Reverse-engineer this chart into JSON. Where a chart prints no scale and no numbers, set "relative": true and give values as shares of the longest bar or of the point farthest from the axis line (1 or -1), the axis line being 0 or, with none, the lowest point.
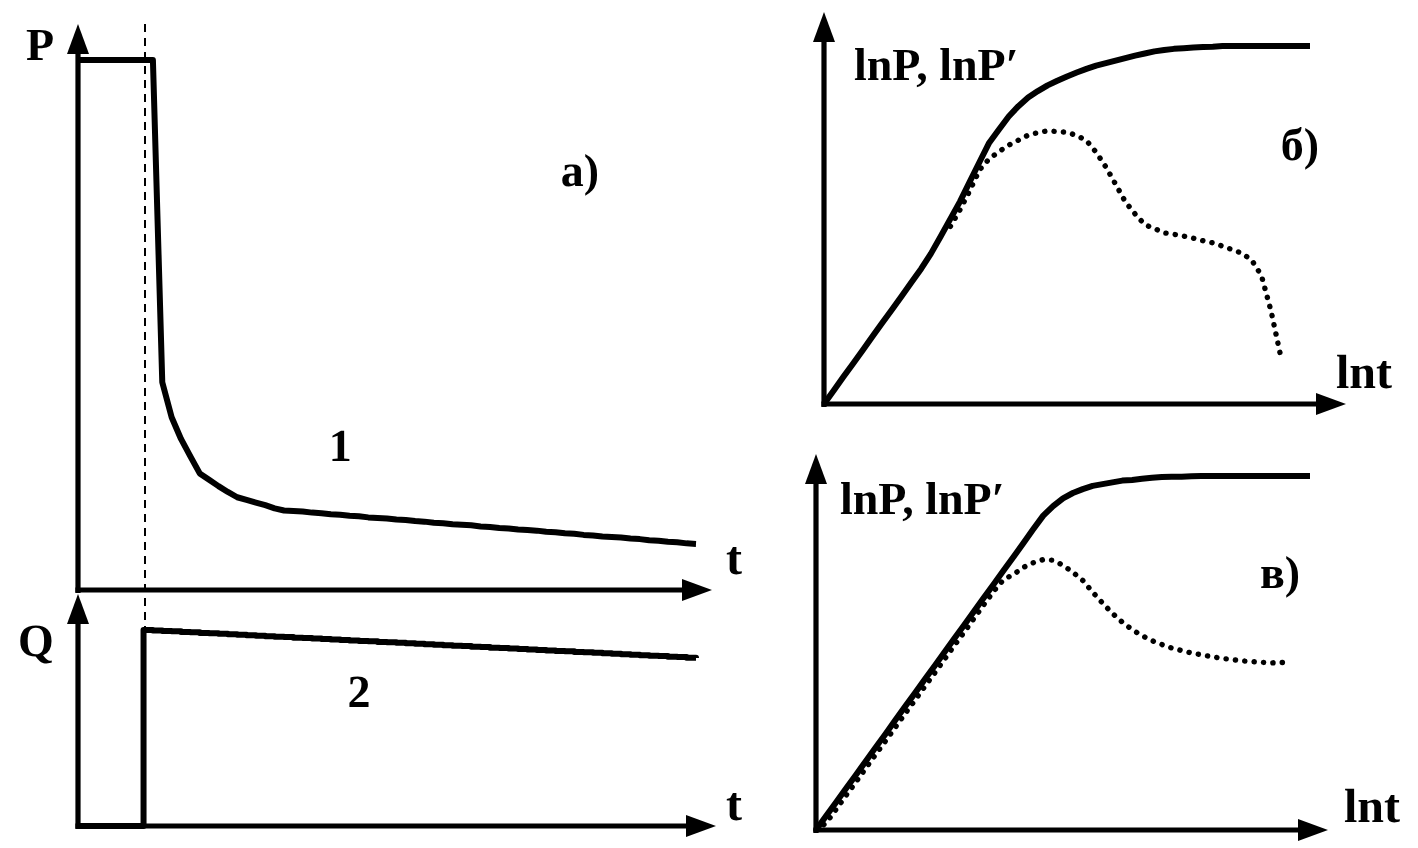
{
  "chart_data": [
    {
      "type": "line",
      "title": "a)",
      "xlabel": "t",
      "ylabel": "P",
      "relative": true,
      "categories": [
        null,
        null,
        null,
        null,
        null,
        null,
        null,
        null,
        null,
        null,
        null,
        null,
        null,
        null,
        null,
        null,
        null,
        null,
        null,
        null,
        null,
        null,
        null,
        null,
        null,
        null,
        null,
        null,
        null,
        null,
        null,
        null,
        null,
        null,
        null,
        null,
        null,
        null,
        null,
        null,
        null,
        null,
        null,
        null,
        null,
        null,
        null,
        null,
        null,
        null,
        null,
        null,
        null,
        null,
        null,
        null,
        null,
        null,
        null,
        null,
        null,
        null,
        null,
        null,
        null,
        null,
        null
      ],
      "series": [
        {
          "name": "1",
          "color": "#000000",
          "values": [
            1,
            1,
            1,
            1,
            1,
            1,
            1,
            1,
            1,
            0.392,
            0.326,
            0.285,
            0.252,
            0.22,
            0.208,
            0.196,
            0.185,
            0.175,
            0.17,
            0.165,
            0.16,
            0.154,
            0.15,
            0.149,
            0.148,
            0.146,
            0.145,
            0.143,
            0.142,
            0.14,
            0.139,
            0.137,
            0.136,
            0.135,
            0.133,
            0.132,
            0.13,
            0.129,
            0.127,
            0.126,
            0.124,
            0.123,
            0.122,
            0.12,
            0.119,
            0.117,
            0.116,
            0.114,
            0.113,
            0.112,
            0.11,
            0.109,
            0.107,
            0.106,
            0.104,
            0.103,
            0.101,
            0.1,
            0.099,
            0.097,
            0.096,
            0.094,
            0.093,
            0.091,
            0.09,
            0.088,
            0.087
          ]
        }
      ]
    },
    {
      "type": "step",
      "xlabel": "t",
      "ylabel": "Q",
      "relative": true,
      "categories": [
        null,
        null,
        null,
        null,
        null,
        null,
        null,
        null,
        null,
        null,
        null,
        null,
        null,
        null,
        null,
        null,
        null,
        null,
        null,
        null,
        null,
        null,
        null,
        null,
        null,
        null,
        null,
        null,
        null,
        null,
        null,
        null,
        null,
        null,
        null,
        null,
        null,
        null,
        null,
        null,
        null,
        null,
        null,
        null,
        null,
        null,
        null,
        null,
        null,
        null,
        null,
        null,
        null,
        null,
        null,
        null,
        null,
        null,
        null,
        null,
        null,
        null,
        null,
        null,
        null,
        null,
        null
      ],
      "series": [
        {
          "name": "2",
          "color": "#000000",
          "values": [
            0,
            0,
            0,
            0,
            0,
            0,
            0,
            1,
            0.998,
            0.995,
            0.993,
            0.99,
            0.988,
            0.985,
            0.983,
            0.981,
            0.978,
            0.976,
            0.973,
            0.971,
            0.968,
            0.966,
            0.964,
            0.961,
            0.959,
            0.956,
            0.954,
            0.952,
            0.949,
            0.947,
            0.944,
            0.942,
            0.939,
            0.937,
            0.935,
            0.932,
            0.93,
            0.927,
            0.925,
            0.922,
            0.92,
            0.918,
            0.915,
            0.913,
            0.91,
            0.908,
            0.905,
            0.903,
            0.901,
            0.898,
            0.896,
            0.893,
            0.891,
            0.888,
            0.886,
            0.884,
            0.881,
            0.879,
            0.876,
            0.874,
            0.871,
            0.869,
            0.867,
            0.864,
            0.862,
            0.859,
            0.857
          ]
        }
      ]
    },
    {
      "type": "line",
      "title": "б)",
      "xlabel": "lnt",
      "ylabel": "lnP, lnP′",
      "relative": true,
      "categories": [
        null,
        null,
        null,
        null,
        null,
        null,
        null,
        null,
        null,
        null,
        null,
        null,
        null,
        null,
        null,
        null,
        null,
        null,
        null,
        null,
        null,
        null,
        null,
        null,
        null,
        null,
        null,
        null,
        null,
        null,
        null,
        null,
        null,
        null,
        null,
        null,
        null,
        null,
        null,
        null,
        null,
        null,
        null,
        null,
        null,
        null,
        null,
        null,
        null,
        null,
        null
      ],
      "series": [
        {
          "color": "#000000",
          "line_style": "solid",
          "values": [
            0,
            0.038,
            0.076,
            0.113,
            0.151,
            0.189,
            0.227,
            0.264,
            0.302,
            0.34,
            0.378,
            0.42,
            0.468,
            0.517,
            0.566,
            0.621,
            0.676,
            0.73,
            0.767,
            0.803,
            0.832,
            0.856,
            0.874,
            0.89,
            0.903,
            0.915,
            0.926,
            0.936,
            0.945,
            0.952,
            0.959,
            0.966,
            0.973,
            0.979,
            0.985,
            0.989,
            0.992,
            0.994,
            0.996,
            0.997,
            0.998,
            1,
            1,
            1,
            1,
            1,
            1,
            1,
            1,
            1,
            1
          ]
        },
        {
          "color": "#000000",
          "line_style": "dotted",
          "values": [
            null,
            null,
            null,
            null,
            null,
            null,
            null,
            null,
            null,
            null,
            null,
            null,
            null,
            0.496,
            0.543,
            0.596,
            0.654,
            0.685,
            0.705,
            0.723,
            0.737,
            0.751,
            0.758,
            0.763,
            0.761,
            0.759,
            0.75,
            0.736,
            0.703,
            0.662,
            0.614,
            0.565,
            0.531,
            0.501,
            0.49,
            0.478,
            0.474,
            0.469,
            0.463,
            0.456,
            0.45,
            0.441,
            0.431,
            0.421,
            0.402,
            0.359,
            0.259,
            0.132,
            null,
            null,
            null
          ]
        }
      ]
    },
    {
      "type": "line",
      "title": "в)",
      "xlabel": "lnt",
      "ylabel": "lnP, lnP′",
      "relative": true,
      "categories": [
        null,
        null,
        null,
        null,
        null,
        null,
        null,
        null,
        null,
        null,
        null,
        null,
        null,
        null,
        null,
        null,
        null,
        null,
        null,
        null,
        null,
        null,
        null,
        null,
        null,
        null,
        null,
        null,
        null,
        null,
        null,
        null,
        null,
        null,
        null,
        null,
        null,
        null,
        null,
        null,
        null,
        null,
        null,
        null,
        null,
        null,
        null,
        null,
        null,
        null,
        null
      ],
      "series": [
        {
          "color": "#000000",
          "line_style": "solid",
          "values": [
            0,
            0.039,
            0.077,
            0.116,
            0.154,
            0.193,
            0.232,
            0.27,
            0.309,
            0.348,
            0.386,
            0.425,
            0.463,
            0.502,
            0.541,
            0.579,
            0.618,
            0.657,
            0.695,
            0.734,
            0.772,
            0.811,
            0.85,
            0.888,
            0.915,
            0.937,
            0.952,
            0.963,
            0.972,
            0.977,
            0.982,
            0.987,
            0.989,
            0.992,
            0.995,
            0.997,
            0.998,
            0.998,
            0.999,
            1,
            1,
            1,
            1,
            1,
            1,
            1,
            1,
            1,
            1,
            1,
            1
          ]
        },
        {
          "color": "#000000",
          "line_style": "dotted",
          "values": [
            0,
            0.019,
            0.057,
            0.096,
            0.134,
            0.173,
            0.212,
            0.25,
            0.289,
            0.328,
            0.366,
            0.405,
            0.443,
            0.482,
            0.521,
            0.559,
            0.598,
            0.637,
            0.675,
            0.708,
            0.722,
            0.742,
            0.755,
            0.764,
            0.762,
            0.748,
            0.728,
            0.705,
            0.672,
            0.641,
            0.612,
            0.587,
            0.566,
            0.549,
            0.535,
            0.524,
            0.514,
            0.507,
            0.5,
            0.495,
            0.49,
            0.485,
            0.482,
            0.478,
            0.476,
            0.474,
            0.472,
            0.473,
            0.474,
            null,
            null
          ]
        }
      ]
    }
  ]
}
